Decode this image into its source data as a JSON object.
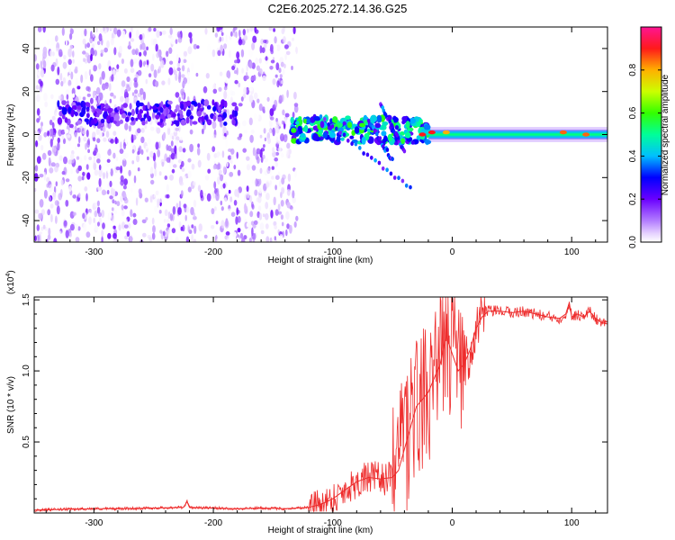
{
  "figure": {
    "title": "C2E6.2025.272.14.36.G25"
  },
  "chart_data": [
    {
      "type": "heatmap",
      "name": "spectrogram",
      "xlabel": "Height of straight line (km)",
      "ylabel": "Frequency (Hz)",
      "xlim": [
        -350,
        130
      ],
      "ylim": [
        -50,
        50
      ],
      "xticks": [
        -300,
        -200,
        -100,
        0,
        100
      ],
      "xtick_labels": [
        "-300",
        "-200",
        "-100",
        "0",
        "100"
      ],
      "yticks": [
        -40,
        -20,
        0,
        20,
        40
      ],
      "ytick_labels": [
        "-40",
        "-20",
        "0",
        "20",
        "40"
      ],
      "colorbar": {
        "label": "Normalized spectral amplitude",
        "range": [
          0,
          1
        ],
        "ticks": [
          0.0,
          0.2,
          0.4,
          0.6,
          0.8
        ],
        "tick_labels": [
          "0.0",
          "0.2",
          "0.4",
          "0.6",
          "0.8"
        ],
        "colors": [
          "#ffffff",
          "#e0c8ff",
          "#8a2be2",
          "#0000ff",
          "#00bfff",
          "#00ff7f",
          "#7fff00",
          "#ffff00",
          "#ff8c00",
          "#ff0000",
          "#ff1493"
        ]
      },
      "regions": [
        {
          "name": "noise",
          "x": [
            -350,
            -130
          ],
          "freq": [
            -50,
            50
          ],
          "amplitude": [
            0.0,
            0.2
          ]
        },
        {
          "name": "mid-band-hump",
          "x": [
            -330,
            -180
          ],
          "freq": [
            5,
            15
          ],
          "amplitude": [
            0.1,
            0.3
          ]
        },
        {
          "name": "transition",
          "x": [
            -135,
            -20
          ],
          "freq": [
            -22,
            12
          ],
          "amplitude": [
            0.2,
            0.6
          ]
        },
        {
          "name": "main-line",
          "x": [
            -20,
            130
          ],
          "freq": [
            -2,
            2
          ],
          "amplitude": [
            0.5,
            0.9
          ]
        }
      ],
      "hotspots": [
        {
          "x": -25,
          "freq": 0,
          "amplitude": 0.9
        },
        {
          "x": -17,
          "freq": 1,
          "amplitude": 0.9
        },
        {
          "x": -5,
          "freq": 1,
          "amplitude": 0.8
        },
        {
          "x": 93,
          "freq": 1,
          "amplitude": 0.85
        },
        {
          "x": 112,
          "freq": 0,
          "amplitude": 0.85
        }
      ],
      "diagonal_branches": [
        {
          "x": [
            -110,
            -35
          ],
          "freq": [
            8,
            -25
          ]
        },
        {
          "x": [
            -70,
            -50
          ],
          "freq": [
            6,
            -12
          ]
        },
        {
          "x": [
            -60,
            -40
          ],
          "freq": [
            14,
            -8
          ]
        }
      ]
    },
    {
      "type": "line",
      "name": "snr",
      "xlabel": "Height of straight line (km)",
      "ylabel": "SNR (10 * v/v)",
      "y_multiplier": "(x10",
      "y_multiplier_exp": "4",
      "y_multiplier_close": ")",
      "xlim": [
        -350,
        130
      ],
      "ylim": [
        0.0,
        1.52
      ],
      "xticks": [
        -300,
        -200,
        -100,
        0,
        100
      ],
      "xtick_labels": [
        "-300",
        "-200",
        "-100",
        "0",
        "100"
      ],
      "yticks": [
        0.5,
        1.0,
        1.5
      ],
      "ytick_labels": [
        "0.5",
        "1.0",
        "1.5"
      ],
      "color": "#ee2c2c",
      "series": [
        {
          "name": "SNR",
          "x": [
            -350,
            -330,
            -300,
            -280,
            -250,
            -225,
            -222,
            -220,
            -200,
            -180,
            -160,
            -140,
            -120,
            -110,
            -100,
            -90,
            -80,
            -70,
            -60,
            -50,
            -45,
            -40,
            -35,
            -30,
            -25,
            -20,
            -15,
            -10,
            -5,
            0,
            5,
            10,
            15,
            20,
            25,
            30,
            40,
            50,
            60,
            70,
            80,
            90,
            95,
            98,
            100,
            105,
            110,
            115,
            120,
            125,
            130
          ],
          "y": [
            0.02,
            0.025,
            0.03,
            0.03,
            0.035,
            0.04,
            0.08,
            0.04,
            0.035,
            0.03,
            0.035,
            0.03,
            0.04,
            0.06,
            0.1,
            0.16,
            0.22,
            0.25,
            0.24,
            0.25,
            0.3,
            0.45,
            0.6,
            0.75,
            0.8,
            0.85,
            0.95,
            1.05,
            1.25,
            1.12,
            1.0,
            1.05,
            1.15,
            1.3,
            1.38,
            1.42,
            1.42,
            1.41,
            1.42,
            1.4,
            1.38,
            1.37,
            1.4,
            1.48,
            1.38,
            1.4,
            1.38,
            1.42,
            1.37,
            1.34,
            1.33
          ]
        }
      ]
    }
  ]
}
